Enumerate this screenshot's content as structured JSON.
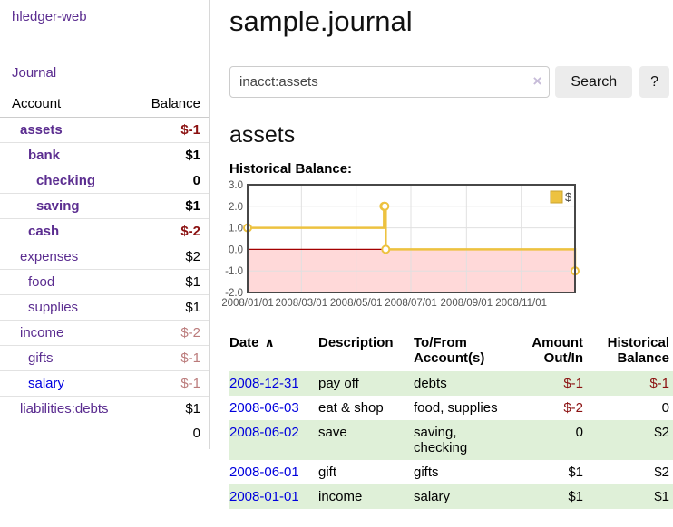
{
  "brand": "hledger-web",
  "colors": {
    "accent_purple": "#5b2d90",
    "link_blue": "#0000dd",
    "negative_red": "#8b1111",
    "faded_negative_red": "#bb7b7b",
    "row_highlight_green": "#dff0d8",
    "series_gold": "#edc240",
    "chart_negative_region": "#ffd9d9",
    "chart_zero_line": "#a40000"
  },
  "sidebar": {
    "journal_link": "Journal",
    "accounts_table": {
      "account_header": "Account",
      "balance_header": "Balance",
      "rows": [
        {
          "name": "assets",
          "balance": "$-1",
          "indent": 1,
          "in_acct": true,
          "amount_style": "neg",
          "link_style": "visited"
        },
        {
          "name": "bank",
          "balance": "$1",
          "indent": 2,
          "in_acct": true,
          "amount_style": "",
          "link_style": "visited"
        },
        {
          "name": "checking",
          "balance": "0",
          "indent": 3,
          "in_acct": true,
          "amount_style": "",
          "link_style": "visited"
        },
        {
          "name": "saving",
          "balance": "$1",
          "indent": 3,
          "in_acct": true,
          "amount_style": "",
          "link_style": "visited"
        },
        {
          "name": "cash",
          "balance": "$-2",
          "indent": 2,
          "in_acct": true,
          "amount_style": "neg",
          "link_style": "visited"
        },
        {
          "name": "expenses",
          "balance": "$2",
          "indent": 1,
          "in_acct": false,
          "amount_style": "",
          "link_style": "visited"
        },
        {
          "name": "food",
          "balance": "$1",
          "indent": 2,
          "in_acct": false,
          "amount_style": "",
          "link_style": "visited"
        },
        {
          "name": "supplies",
          "balance": "$1",
          "indent": 2,
          "in_acct": false,
          "amount_style": "",
          "link_style": "visited"
        },
        {
          "name": "income",
          "balance": "$-2",
          "indent": 1,
          "in_acct": false,
          "amount_style": "faded-neg",
          "link_style": "visited"
        },
        {
          "name": "gifts",
          "balance": "$-1",
          "indent": 2,
          "in_acct": false,
          "amount_style": "faded-neg",
          "link_style": "visited"
        },
        {
          "name": "salary",
          "balance": "$-1",
          "indent": 2,
          "in_acct": false,
          "amount_style": "faded-neg",
          "link_style": "unvisited"
        },
        {
          "name": "liabilities:debts",
          "balance": "$1",
          "indent": 1,
          "in_acct": false,
          "amount_style": "",
          "link_style": "visited"
        }
      ],
      "total": "0"
    }
  },
  "main": {
    "title": "sample.journal",
    "search": {
      "value": "inacct:assets",
      "clear_icon": "×",
      "button_label": "Search",
      "help_label": "?"
    },
    "account_heading": "assets",
    "chart_label": "Historical Balance:"
  },
  "chart_data": {
    "type": "line",
    "title": "Historical Balance",
    "step": true,
    "grid": true,
    "legend_position": "top-right",
    "series": [
      {
        "name": "$",
        "color": "#edc240",
        "points": [
          [
            "2008-01-01",
            1
          ],
          [
            "2008-06-01",
            2
          ],
          [
            "2008-06-02",
            2
          ],
          [
            "2008-06-03",
            0
          ],
          [
            "2008-12-31",
            -1
          ]
        ]
      }
    ],
    "xrange": [
      "2008-01-01",
      "2008-12-31"
    ],
    "ylim": [
      -2,
      3
    ],
    "yticks": [
      "3.0",
      "2.0",
      "1.0",
      "0.0",
      "-1.0",
      "-2.0"
    ],
    "xticks": [
      {
        "label": "2008/01/01",
        "date": "2008-01-01"
      },
      {
        "label": "2008/03/01",
        "date": "2008-03-01"
      },
      {
        "label": "2008/05/01",
        "date": "2008-05-01"
      },
      {
        "label": "2008/07/01",
        "date": "2008-07-01"
      },
      {
        "label": "2008/09/01",
        "date": "2008-09-01"
      },
      {
        "label": "2008/11/01",
        "date": "2008-11-01"
      }
    ],
    "negative_region_color": "#ffd9d9",
    "zero_line_color": "#a40000"
  },
  "register": {
    "headers": {
      "date": "Date",
      "sort_icon": "∧",
      "description": "Description",
      "tofrom": "To/From\nAccount(s)",
      "amount": "Amount\nOut/In",
      "balance": "Historical\nBalance"
    },
    "rows": [
      {
        "date": "2008-12-31",
        "description": "pay off",
        "tofrom": "debts",
        "amount": "$-1",
        "amount_style": "neg",
        "balance": "$-1",
        "balance_style": "neg",
        "highlight": true
      },
      {
        "date": "2008-06-03",
        "description": "eat & shop",
        "tofrom": "food, supplies",
        "amount": "$-2",
        "amount_style": "neg",
        "balance": "0",
        "balance_style": "",
        "highlight": false
      },
      {
        "date": "2008-06-02",
        "description": "save",
        "tofrom": "saving,\nchecking",
        "amount": "0",
        "amount_style": "",
        "balance": "$2",
        "balance_style": "",
        "highlight": true
      },
      {
        "date": "2008-06-01",
        "description": "gift",
        "tofrom": "gifts",
        "amount": "$1",
        "amount_style": "",
        "balance": "$2",
        "balance_style": "",
        "highlight": false
      },
      {
        "date": "2008-01-01",
        "description": "income",
        "tofrom": "salary",
        "amount": "$1",
        "amount_style": "",
        "balance": "$1",
        "balance_style": "",
        "highlight": true
      }
    ]
  }
}
